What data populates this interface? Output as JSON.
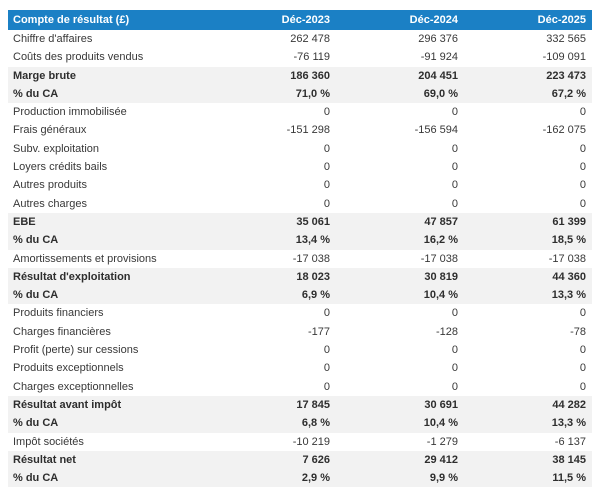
{
  "colors": {
    "header_bg": "#1b80c5",
    "header_text": "#ffffff",
    "band_bg": "#f2f2f2",
    "row_bg": "#ffffff",
    "text": "#383838"
  },
  "table": {
    "title": "Compte de résultat (£)",
    "columns": [
      "Déc-2023",
      "Déc-2024",
      "Déc-2025"
    ],
    "rows": [
      {
        "label": "Chiffre d'affaires",
        "values": [
          "262 478",
          "296 376",
          "332 565"
        ],
        "emphasis": false
      },
      {
        "label": "Coûts des produits vendus",
        "values": [
          "-76 119",
          "-91 924",
          "-109 091"
        ],
        "emphasis": false
      },
      {
        "label": "Marge brute",
        "values": [
          "186 360",
          "204 451",
          "223 473"
        ],
        "emphasis": true
      },
      {
        "label": "% du CA",
        "values": [
          "71,0 %",
          "69,0 %",
          "67,2 %"
        ],
        "emphasis": true
      },
      {
        "label": "Production immobilisée",
        "values": [
          "0",
          "0",
          "0"
        ],
        "emphasis": false
      },
      {
        "label": "Frais généraux",
        "values": [
          "-151 298",
          "-156 594",
          "-162 075"
        ],
        "emphasis": false
      },
      {
        "label": "Subv. exploitation",
        "values": [
          "0",
          "0",
          "0"
        ],
        "emphasis": false
      },
      {
        "label": "Loyers crédits bails",
        "values": [
          "0",
          "0",
          "0"
        ],
        "emphasis": false
      },
      {
        "label": "Autres produits",
        "values": [
          "0",
          "0",
          "0"
        ],
        "emphasis": false
      },
      {
        "label": "Autres charges",
        "values": [
          "0",
          "0",
          "0"
        ],
        "emphasis": false
      },
      {
        "label": "EBE",
        "values": [
          "35 061",
          "47 857",
          "61 399"
        ],
        "emphasis": true
      },
      {
        "label": "% du CA",
        "values": [
          "13,4 %",
          "16,2 %",
          "18,5 %"
        ],
        "emphasis": true
      },
      {
        "label": "Amortissements et provisions",
        "values": [
          "-17 038",
          "-17 038",
          "-17 038"
        ],
        "emphasis": false
      },
      {
        "label": "Résultat d'exploitation",
        "values": [
          "18 023",
          "30 819",
          "44 360"
        ],
        "emphasis": true
      },
      {
        "label": "% du CA",
        "values": [
          "6,9 %",
          "10,4 %",
          "13,3 %"
        ],
        "emphasis": true
      },
      {
        "label": "Produits financiers",
        "values": [
          "0",
          "0",
          "0"
        ],
        "emphasis": false
      },
      {
        "label": "Charges financières",
        "values": [
          "-177",
          "-128",
          "-78"
        ],
        "emphasis": false
      },
      {
        "label": "Profit (perte) sur cessions",
        "values": [
          "0",
          "0",
          "0"
        ],
        "emphasis": false
      },
      {
        "label": "Produits exceptionnels",
        "values": [
          "0",
          "0",
          "0"
        ],
        "emphasis": false
      },
      {
        "label": "Charges exceptionnelles",
        "values": [
          "0",
          "0",
          "0"
        ],
        "emphasis": false
      },
      {
        "label": "Résultat avant impôt",
        "values": [
          "17 845",
          "30 691",
          "44 282"
        ],
        "emphasis": true
      },
      {
        "label": "% du CA",
        "values": [
          "6,8 %",
          "10,4 %",
          "13,3 %"
        ],
        "emphasis": true
      },
      {
        "label": "Impôt sociétés",
        "values": [
          "-10 219",
          "-1 279",
          "-6 137"
        ],
        "emphasis": false
      },
      {
        "label": "Résultat net",
        "values": [
          "7 626",
          "29 412",
          "38 145"
        ],
        "emphasis": true
      },
      {
        "label": "% du CA",
        "values": [
          "2,9 %",
          "9,9 %",
          "11,5 %"
        ],
        "emphasis": true
      }
    ]
  }
}
